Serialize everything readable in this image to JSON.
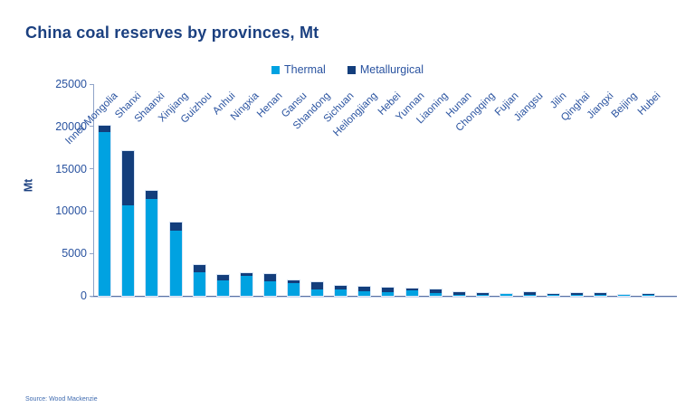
{
  "page": {
    "title": "China coal reserves by provinces, Mt",
    "source": "Source: Wood Mackenzie"
  },
  "colors": {
    "thermal": "#00A2E1",
    "metallurgical": "#133E7C",
    "title_text": "#1B4080",
    "axis_text": "#2A53A0",
    "axis_line": "#8FA3C8",
    "baseline": "#5B72A4",
    "source_text": "#3F6BB0"
  },
  "chart_data": {
    "type": "bar",
    "stacked": true,
    "title": "China coal reserves by provinces, Mt",
    "xlabel": "",
    "ylabel": "Mt",
    "ylim": [
      0,
      25000
    ],
    "yticks": [
      0,
      5000,
      10000,
      15000,
      20000,
      25000
    ],
    "grid": false,
    "legend_position": "top-center",
    "source": "Source: Wood Mackenzie",
    "categories": [
      "Inner Mongolia",
      "Shanxi",
      "Shaanxi",
      "Xinjiang",
      "Guizhou",
      "Anhui",
      "Ningxia",
      "Henan",
      "Gansu",
      "Shandong",
      "Sichuan",
      "Heilongjiang",
      "Hebei",
      "Yunnan",
      "Liaoning",
      "Hunan",
      "Chongqing",
      "Fujian",
      "Jiangsu",
      "Jilin",
      "Qinghai",
      "Jiangxi",
      "Beijing",
      "Hubei"
    ],
    "series": [
      {
        "name": "Thermal",
        "color": "#00A2E1",
        "values": [
          19300,
          10700,
          11400,
          7700,
          2800,
          1800,
          2300,
          1700,
          1500,
          700,
          750,
          500,
          450,
          650,
          350,
          150,
          80,
          250,
          100,
          50,
          100,
          50,
          140,
          120
        ]
      },
      {
        "name": "Metallurgical",
        "color": "#133E7C",
        "values": [
          800,
          6400,
          1000,
          1000,
          900,
          600,
          350,
          900,
          300,
          900,
          450,
          500,
          550,
          250,
          400,
          350,
          220,
          0,
          300,
          150,
          200,
          200,
          0,
          20
        ]
      }
    ]
  }
}
